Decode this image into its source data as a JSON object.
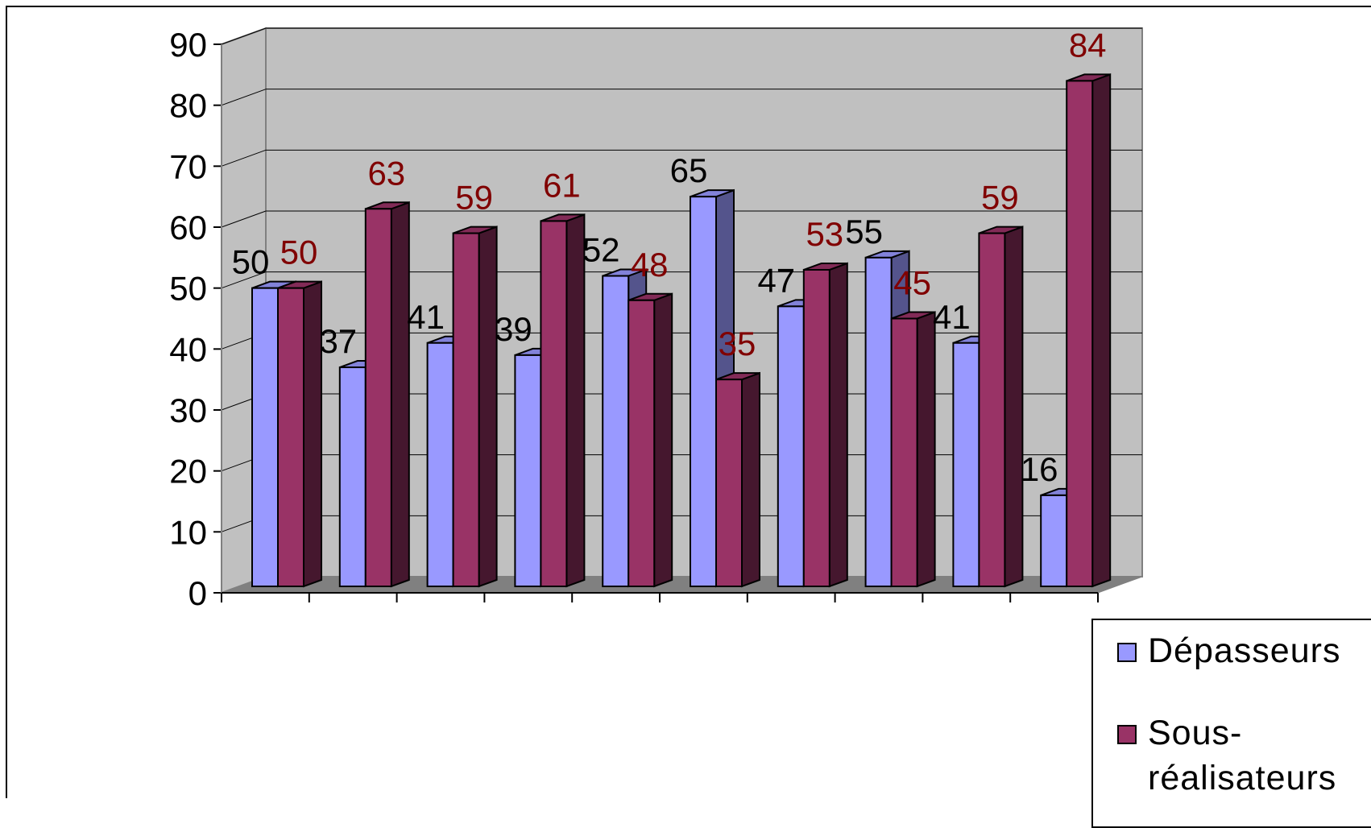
{
  "chart_data": {
    "type": "bar",
    "title": "",
    "xlabel": "",
    "ylabel": "",
    "ylim": [
      0,
      90
    ],
    "yticks": [
      "0",
      "10",
      "20",
      "30",
      "40",
      "50",
      "60",
      "70",
      "80",
      "90"
    ],
    "grid": true,
    "legend_position": "bottom-right",
    "categories": [
      "",
      "",
      "",
      "",
      "",
      "",
      "",
      "",
      "",
      ""
    ],
    "series": [
      {
        "name": "Dépasseurs",
        "values": [
          50,
          37,
          41,
          39,
          52,
          65,
          47,
          55,
          41,
          16
        ],
        "color": "#9999ff",
        "label_color": "#000000"
      },
      {
        "name": "Sous-réalisateurs",
        "values": [
          50,
          63,
          59,
          61,
          48,
          35,
          53,
          45,
          59,
          84
        ],
        "color": "#993366",
        "label_color": "#800000"
      }
    ]
  },
  "legend": {
    "items": [
      {
        "label": "Dépasseurs",
        "color": "#9999ff"
      },
      {
        "label": "Sous-réalisateurs",
        "color": "#993366"
      }
    ]
  }
}
